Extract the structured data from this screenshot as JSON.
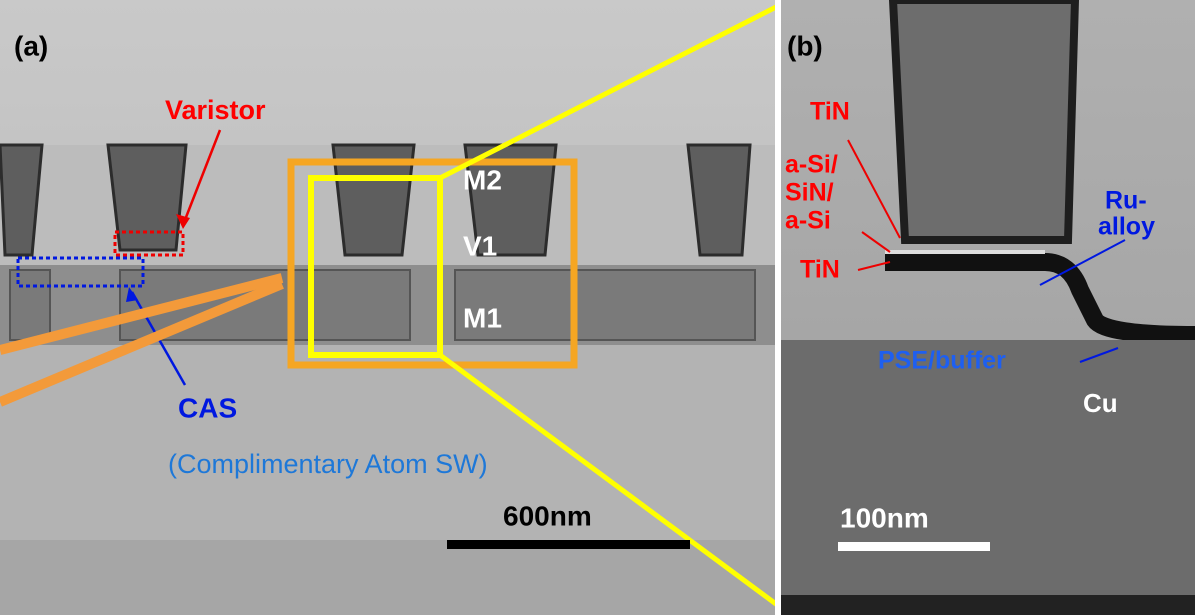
{
  "panel_a": {
    "label": "(a)",
    "varistor": "Varistor",
    "m2": "M2",
    "v1": "V1",
    "m1": "M1",
    "cas": "CAS",
    "cas_full": "(Complimentary Atom SW)",
    "scale": "600nm"
  },
  "panel_b": {
    "label": "(b)",
    "tin_top": "TiN",
    "layers": [
      "a-Si/",
      "SiN/",
      "a-Si"
    ],
    "tin_bottom": "TiN",
    "ru_alloy": [
      "Ru-",
      "alloy"
    ],
    "pse": "PSE/buffer",
    "cu": "Cu",
    "scale": "100nm"
  }
}
